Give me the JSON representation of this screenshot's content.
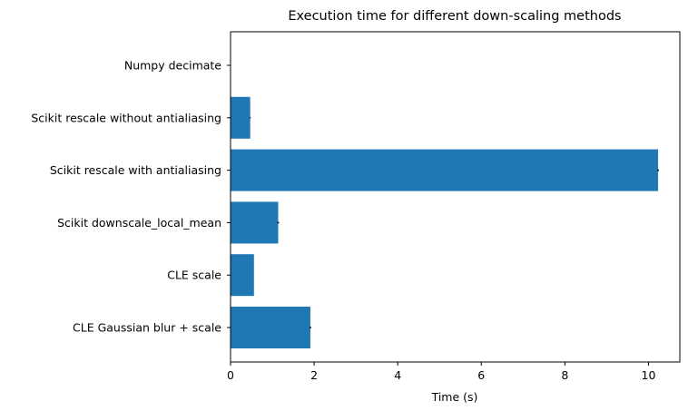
{
  "chart_data": {
    "type": "bar",
    "orientation": "horizontal",
    "title": "Execution time for different down-scaling methods",
    "xlabel": "Time (s)",
    "ylabel": "",
    "categories": [
      "Numpy decimate",
      "Scikit rescale without antialiasing",
      "Scikit rescale with antialiasing",
      "Scikit downscale_local_mean",
      "CLE scale",
      "CLE Gaussian blur + scale"
    ],
    "values": [
      0.0,
      0.47,
      10.23,
      1.14,
      0.56,
      1.91
    ],
    "errors": [
      0.0,
      0.01,
      0.02,
      0.02,
      0.0,
      0.02
    ],
    "xlim": [
      0,
      10.75
    ],
    "xticks": [
      0,
      2,
      4,
      6,
      8,
      10
    ],
    "xtick_labels": [
      "0",
      "2",
      "4",
      "6",
      "8",
      "10"
    ],
    "bar_color": "#1f77b4",
    "error_color": "#000000",
    "grid": false,
    "legend": "none"
  }
}
